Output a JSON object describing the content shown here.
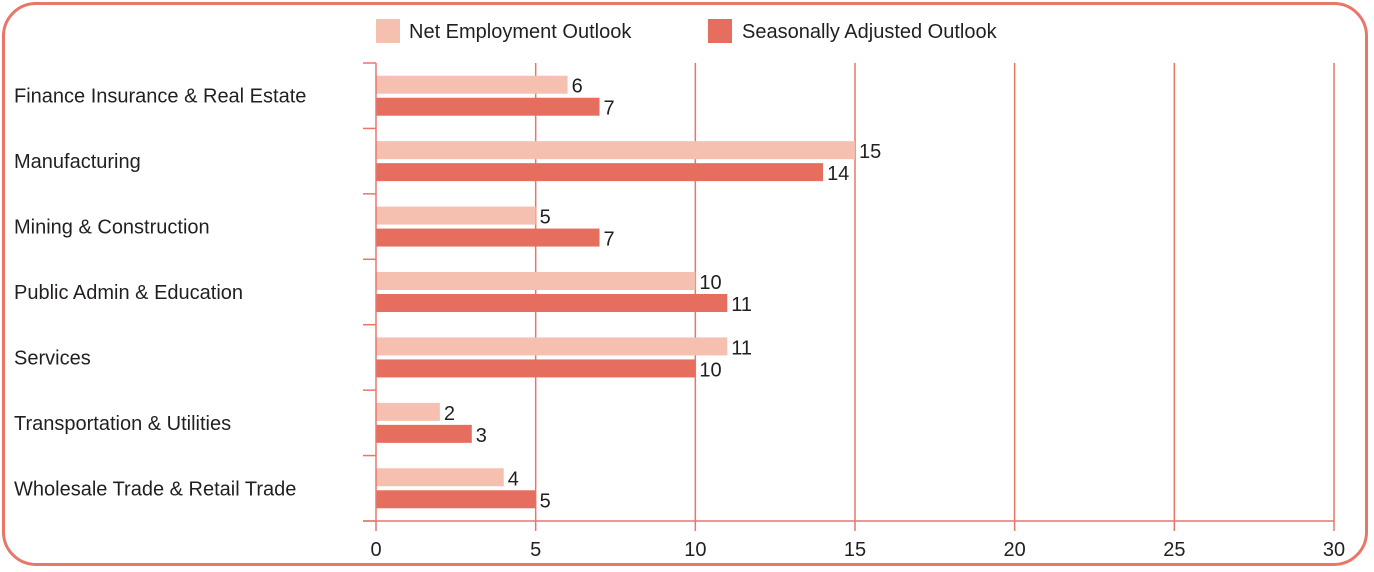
{
  "colors": {
    "net": "#f5c0b0",
    "seasonal": "#e66e5f",
    "axis": "#e8776a",
    "text": "#231f20"
  },
  "chart_data": {
    "type": "bar",
    "orientation": "horizontal",
    "categories": [
      "Finance Insurance & Real Estate",
      "Manufacturing",
      "Mining & Construction",
      "Public Admin & Education",
      "Services",
      "Transportation & Utilities",
      "Wholesale Trade & Retail Trade"
    ],
    "series": [
      {
        "name": "Net Employment Outlook",
        "values": [
          6,
          15,
          5,
          10,
          11,
          2,
          4
        ]
      },
      {
        "name": "Seasonally Adjusted Outlook",
        "values": [
          7,
          14,
          7,
          11,
          10,
          3,
          5
        ]
      }
    ],
    "xlim": [
      0,
      30
    ],
    "xticks": [
      "0",
      "5",
      "10",
      "15",
      "20",
      "25",
      "30"
    ],
    "grid": "vertical",
    "legend": "top-center",
    "data_labels": true
  }
}
